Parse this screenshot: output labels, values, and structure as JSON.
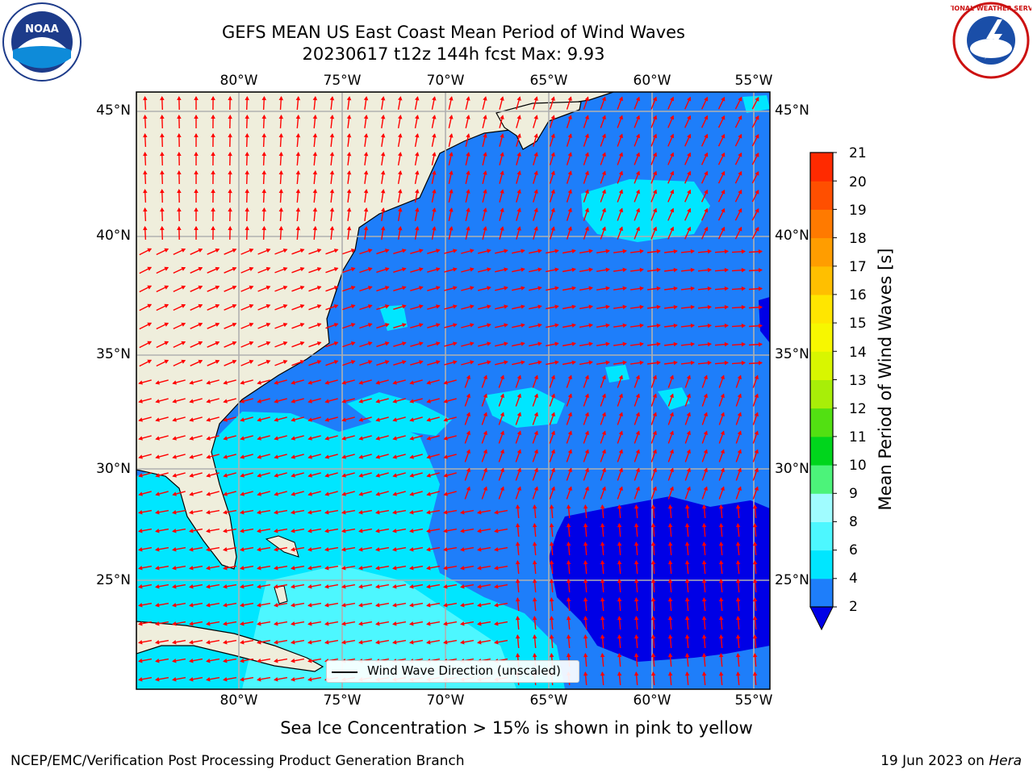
{
  "title": {
    "line1": "GEFS MEAN US East Coast Mean Period of Wind Waves",
    "line2": "20230617 t12z 144h fcst   Max: 9.93"
  },
  "map": {
    "lon_labels": [
      "80°W",
      "75°W",
      "70°W",
      "65°W",
      "60°W",
      "55°W"
    ],
    "lat_labels": [
      "45°N",
      "40°N",
      "35°N",
      "30°N",
      "25°N"
    ],
    "legend": "Wind Wave Direction (unscaled)",
    "land_color": "#efeedc",
    "ocean_base_color": "#1e7efa",
    "arrow_color": "#ff0000"
  },
  "colorbar": {
    "title": "Mean Period of Wind Waves [s]",
    "ticks": [
      "2",
      "4",
      "6",
      "8",
      "9",
      "10",
      "11",
      "12",
      "13",
      "14",
      "15",
      "16",
      "17",
      "18",
      "19",
      "20",
      "21"
    ],
    "colors": [
      "#1e7efa",
      "#00e6ff",
      "#4df7ff",
      "#a0fcff",
      "#4cf37a",
      "#00d51c",
      "#52e012",
      "#a8ee08",
      "#d8f600",
      "#f7f700",
      "#ffe600",
      "#ffbf00",
      "#ff9d00",
      "#ff7a00",
      "#ff4f00",
      "#ff2a00",
      "#ff0000"
    ],
    "under_color": "#0000e6"
  },
  "footer": {
    "subtitle": "Sea Ice Concentration > 15% is shown in pink to yellow",
    "left": "NCEP/EMC/Verification Post Processing Product Generation Branch",
    "right_date": "19 Jun 2023 on ",
    "right_machine": "Hera"
  },
  "logos": {
    "left": "NOAA",
    "right": "NATIONAL WEATHER SERVICE"
  }
}
